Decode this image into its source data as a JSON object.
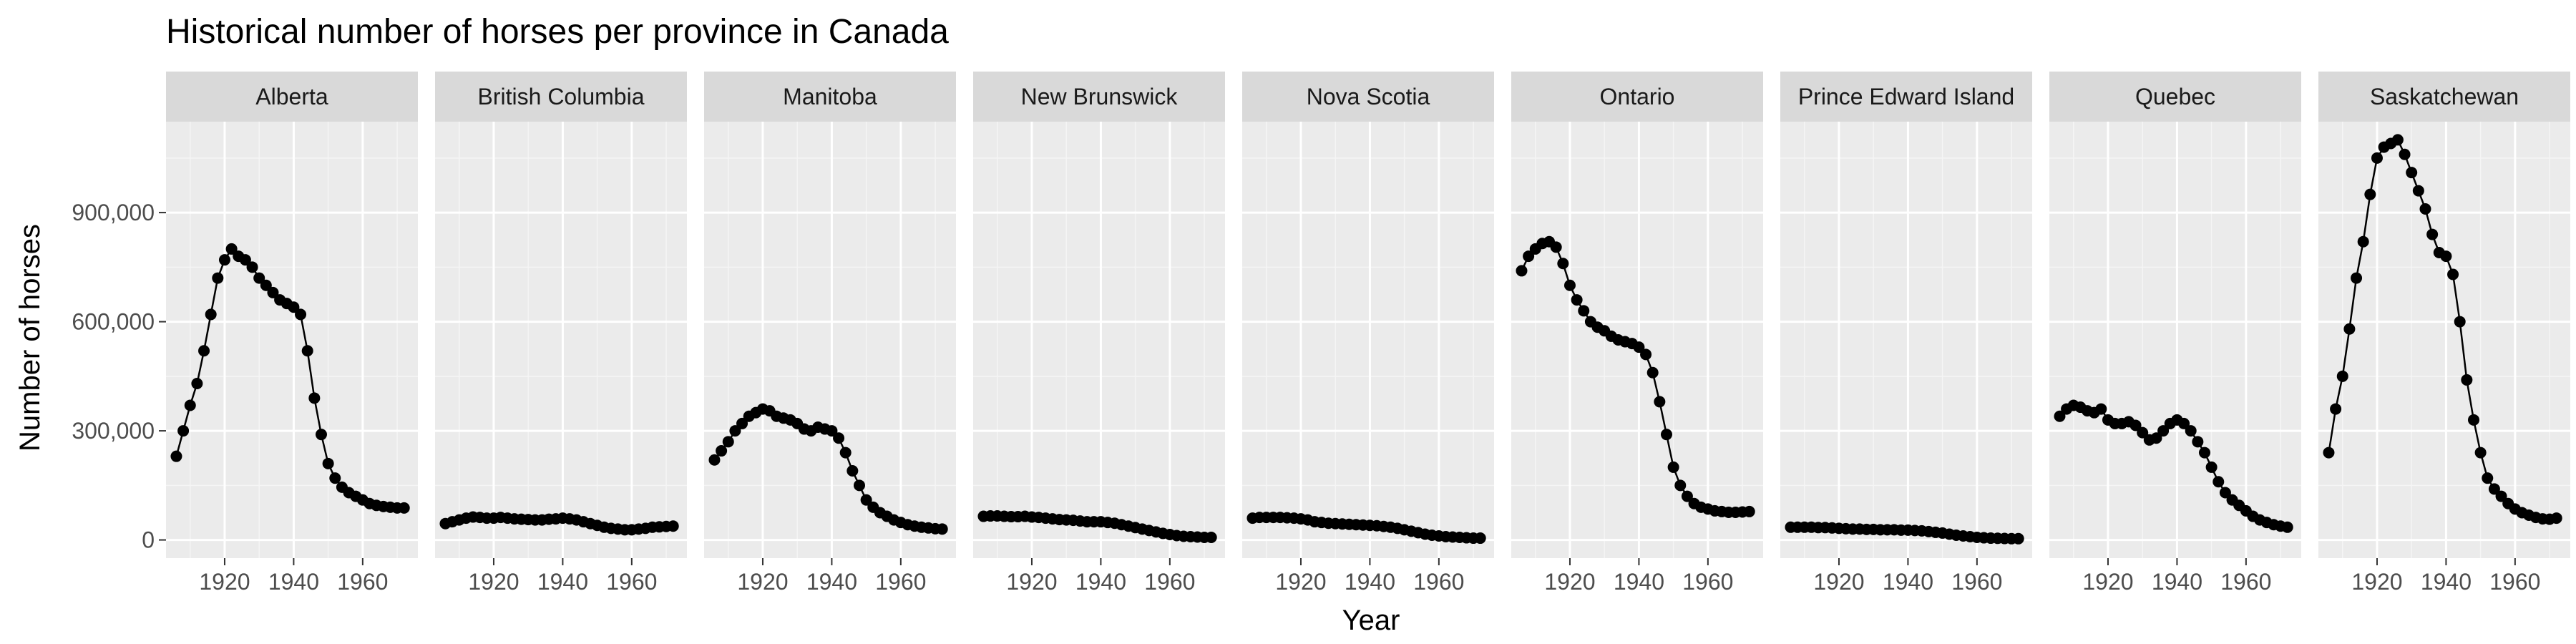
{
  "chart_data": {
    "type": "line",
    "title": "Historical number of horses per province in Canada",
    "xlabel": "Year",
    "ylabel": "Number of horses",
    "xlim": [
      1903,
      1976
    ],
    "ylim": [
      -50000,
      1150000
    ],
    "x_ticks": [
      1920,
      1940,
      1960
    ],
    "x_tick_labels": [
      "1920",
      "1940",
      "1960"
    ],
    "y_ticks": [
      0,
      300000,
      600000,
      900000
    ],
    "y_tick_labels": [
      "0",
      "300,000",
      "600,000",
      "900,000"
    ],
    "grid": true,
    "facet_by": "province",
    "x": [
      1906,
      1908,
      1910,
      1912,
      1914,
      1916,
      1918,
      1920,
      1922,
      1924,
      1926,
      1928,
      1930,
      1932,
      1934,
      1936,
      1938,
      1940,
      1942,
      1944,
      1946,
      1948,
      1950,
      1952,
      1954,
      1956,
      1958,
      1960,
      1962,
      1964,
      1966,
      1968,
      1970,
      1972
    ],
    "panels": [
      {
        "name": "Alberta",
        "values": [
          230000,
          300000,
          370000,
          430000,
          520000,
          620000,
          720000,
          770000,
          800000,
          780000,
          770000,
          750000,
          720000,
          700000,
          680000,
          660000,
          650000,
          640000,
          620000,
          520000,
          390000,
          290000,
          210000,
          170000,
          145000,
          130000,
          120000,
          110000,
          100000,
          95000,
          92000,
          90000,
          88000,
          88000
        ]
      },
      {
        "name": "British Columbia",
        "values": [
          45000,
          50000,
          55000,
          60000,
          63000,
          62000,
          60000,
          60000,
          62000,
          60000,
          58000,
          57000,
          56000,
          55000,
          55000,
          57000,
          58000,
          60000,
          58000,
          55000,
          50000,
          45000,
          40000,
          35000,
          32000,
          30000,
          28000,
          28000,
          30000,
          32000,
          35000,
          36000,
          37000,
          38000
        ]
      },
      {
        "name": "Manitoba",
        "values": [
          220000,
          245000,
          270000,
          300000,
          320000,
          340000,
          350000,
          360000,
          355000,
          340000,
          335000,
          330000,
          320000,
          305000,
          300000,
          310000,
          305000,
          300000,
          280000,
          240000,
          190000,
          150000,
          110000,
          90000,
          75000,
          65000,
          55000,
          48000,
          42000,
          38000,
          35000,
          33000,
          31000,
          30000
        ]
      },
      {
        "name": "New Brunswick",
        "values": [
          65000,
          66000,
          66000,
          65000,
          64000,
          64000,
          65000,
          63000,
          62000,
          60000,
          58000,
          56000,
          55000,
          54000,
          52000,
          50000,
          50000,
          50000,
          48000,
          46000,
          42000,
          38000,
          34000,
          30000,
          26000,
          22000,
          18000,
          15000,
          12000,
          10000,
          9000,
          8000,
          7000,
          7000
        ]
      },
      {
        "name": "Nova Scotia",
        "values": [
          60000,
          62000,
          62000,
          62000,
          62000,
          61000,
          60000,
          58000,
          55000,
          50000,
          48000,
          46000,
          45000,
          44000,
          43000,
          42000,
          41000,
          40000,
          39000,
          37000,
          35000,
          32000,
          28000,
          24000,
          20000,
          16000,
          13000,
          11000,
          9000,
          8000,
          7000,
          6000,
          5000,
          5000
        ]
      },
      {
        "name": "Ontario",
        "values": [
          740000,
          780000,
          800000,
          815000,
          820000,
          805000,
          760000,
          700000,
          660000,
          630000,
          600000,
          585000,
          575000,
          560000,
          550000,
          545000,
          540000,
          530000,
          510000,
          460000,
          380000,
          290000,
          200000,
          150000,
          120000,
          100000,
          90000,
          85000,
          80000,
          78000,
          76000,
          76000,
          77000,
          78000
        ]
      },
      {
        "name": "Prince Edward Island",
        "values": [
          35000,
          35000,
          35000,
          35000,
          34000,
          34000,
          33000,
          32000,
          31000,
          30000,
          30000,
          29000,
          29000,
          28000,
          28000,
          28000,
          27000,
          27000,
          26000,
          25000,
          23000,
          21000,
          19000,
          16000,
          13000,
          11000,
          9000,
          7000,
          6000,
          5000,
          4500,
          4000,
          3500,
          3500
        ]
      },
      {
        "name": "Quebec",
        "values": [
          340000,
          360000,
          370000,
          365000,
          355000,
          350000,
          360000,
          330000,
          320000,
          320000,
          325000,
          315000,
          295000,
          275000,
          280000,
          300000,
          320000,
          330000,
          320000,
          300000,
          270000,
          240000,
          200000,
          160000,
          130000,
          110000,
          95000,
          80000,
          65000,
          55000,
          48000,
          42000,
          38000,
          35000
        ]
      },
      {
        "name": "Saskatchewan",
        "values": [
          240000,
          360000,
          450000,
          580000,
          720000,
          820000,
          950000,
          1050000,
          1080000,
          1090000,
          1100000,
          1060000,
          1010000,
          960000,
          910000,
          840000,
          790000,
          780000,
          730000,
          600000,
          440000,
          330000,
          240000,
          170000,
          140000,
          120000,
          100000,
          85000,
          75000,
          68000,
          62000,
          58000,
          57000,
          60000
        ]
      }
    ]
  }
}
